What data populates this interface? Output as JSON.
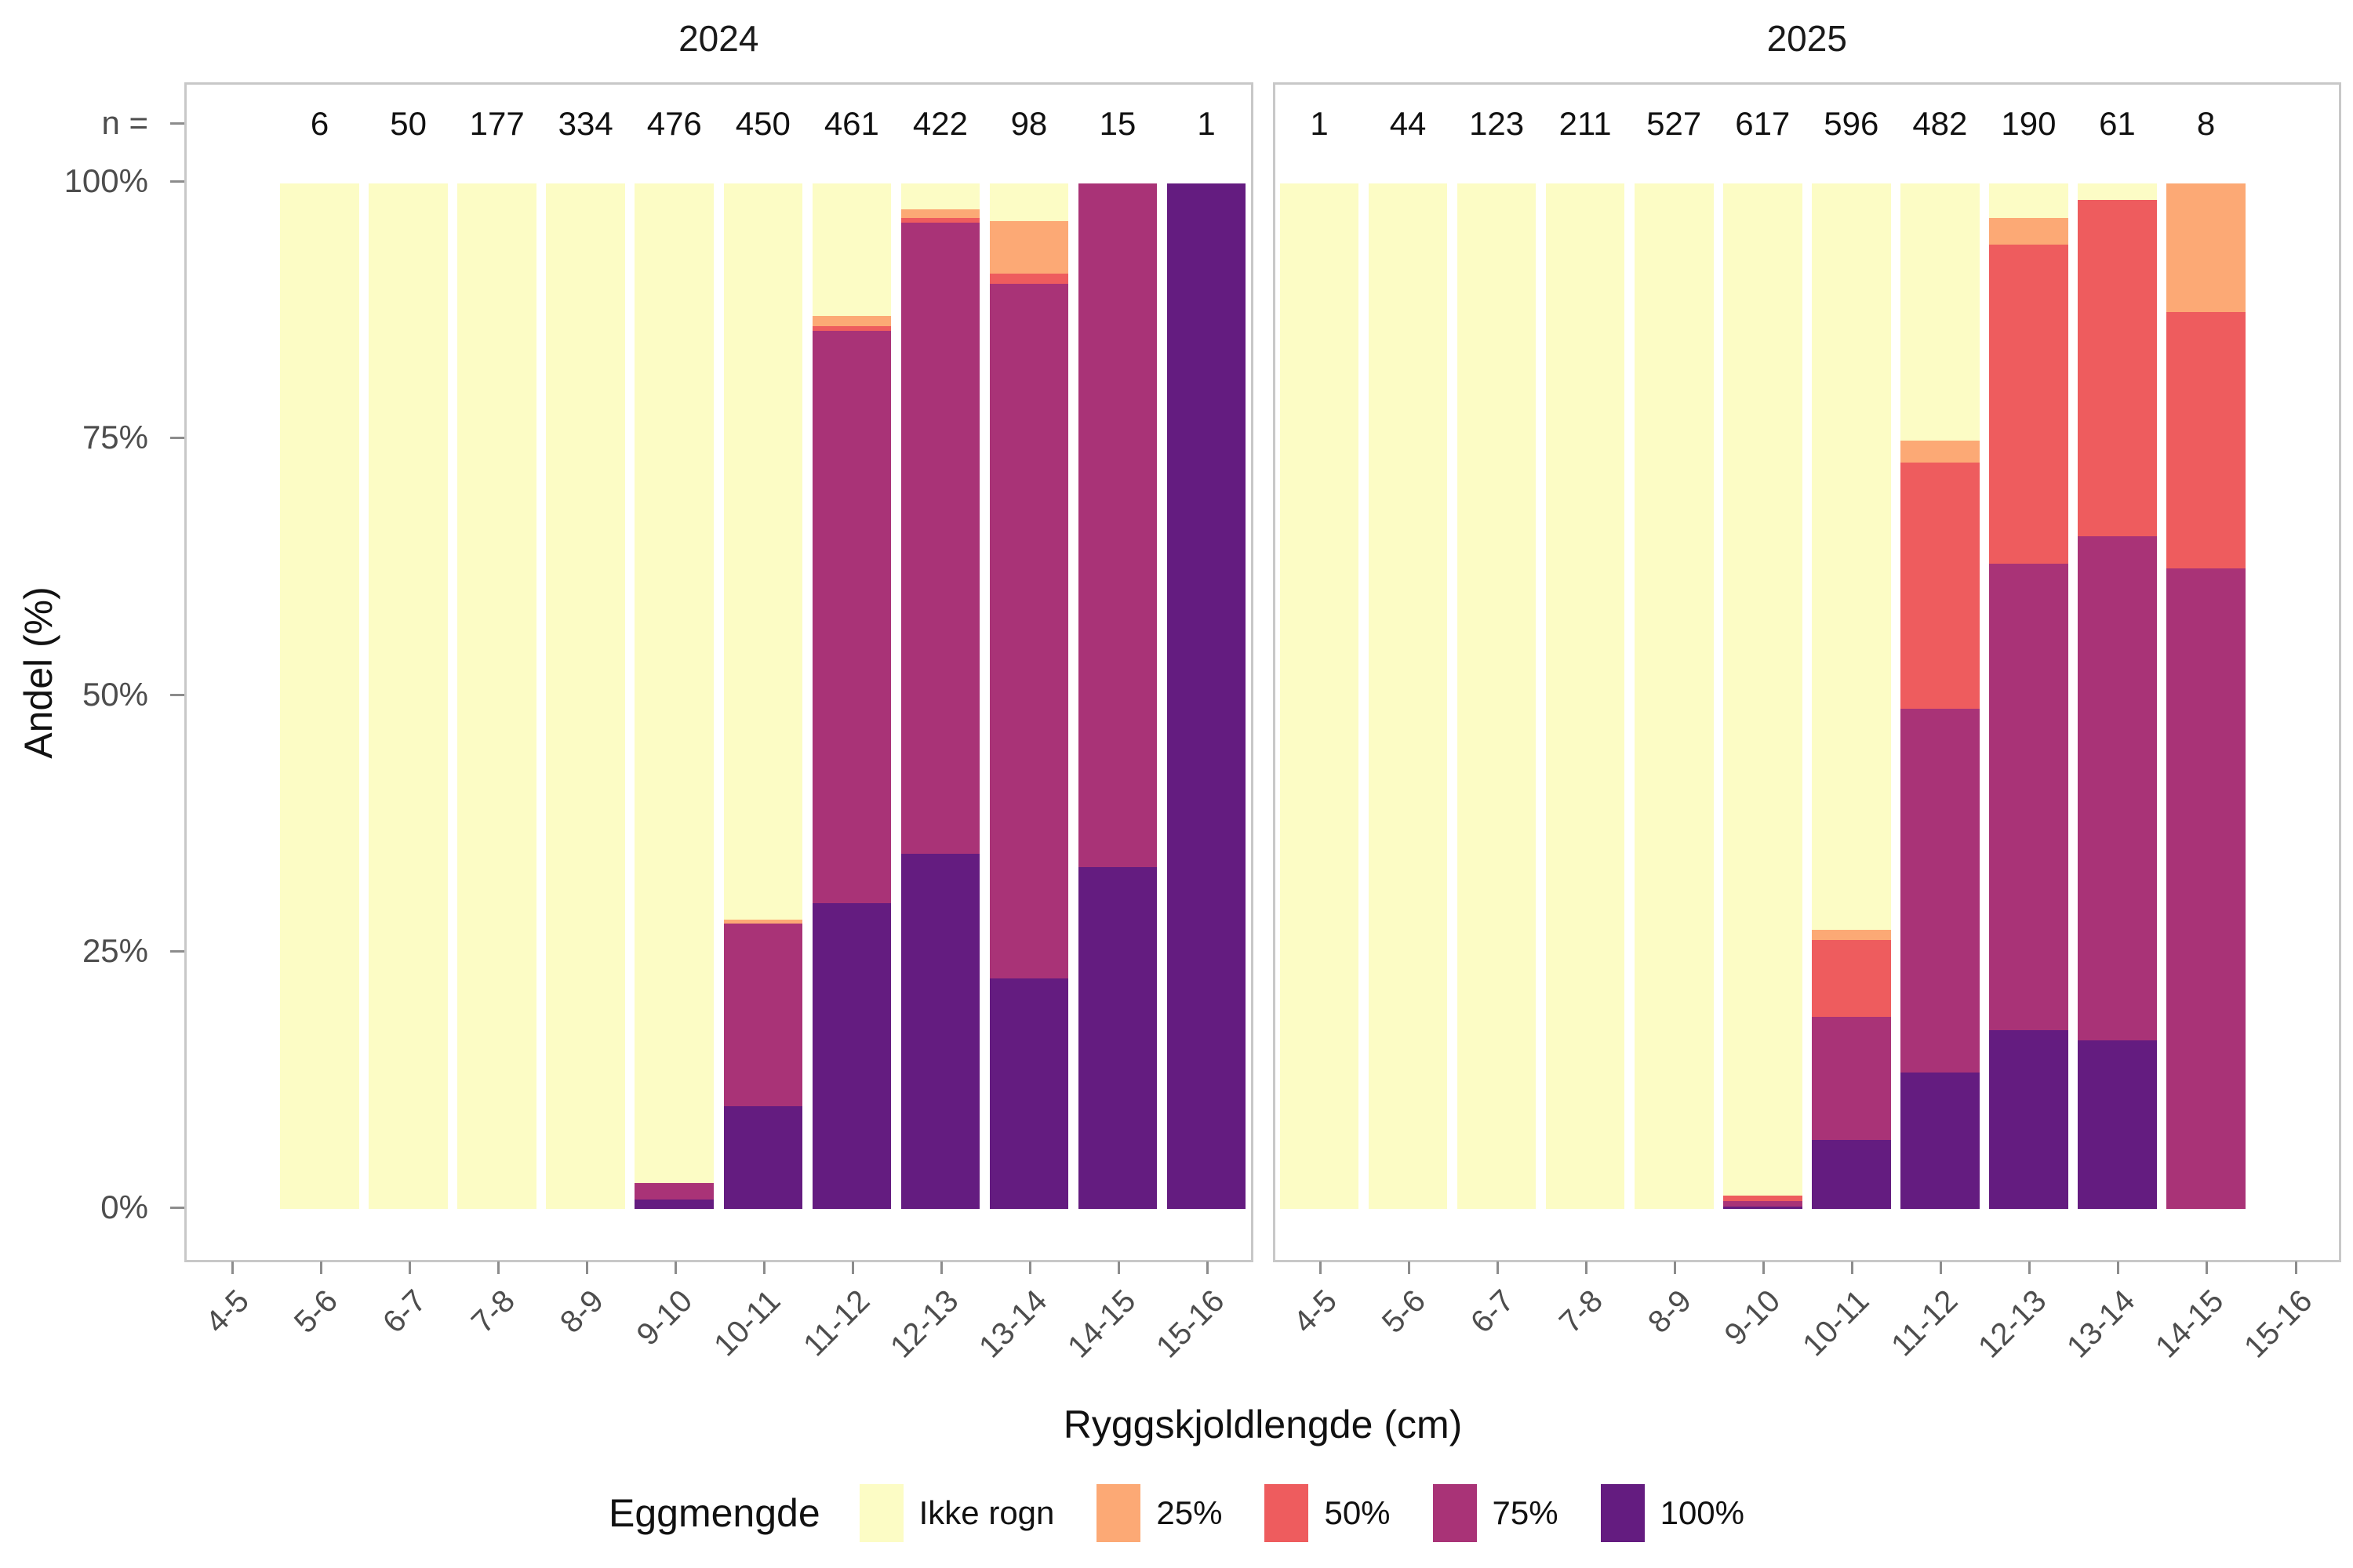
{
  "figure": {
    "y_axis_title": "Andel (%)",
    "x_axis_title": "Ryggskjoldlengde (cm)",
    "n_prefix_label": "n =",
    "legend_title": "Eggmengde"
  },
  "colors": {
    "background": "#FFFFFF",
    "panel_border": "#C8C8C8",
    "axis_text": "#4D4D4D",
    "axis_title": "#111111",
    "tick_mark": "#8C8C8C"
  },
  "chart_data": {
    "type": "bar",
    "stacked": true,
    "normalized": "percent",
    "grid": false,
    "legend_position": "bottom",
    "ylabel": "Andel (%)",
    "xlabel": "Ryggskjoldlengde (cm)",
    "ylim": [
      0,
      100
    ],
    "y_ticks": [
      "0%",
      "25%",
      "50%",
      "75%",
      "100%"
    ],
    "categories": [
      "4-5",
      "5-6",
      "6-7",
      "7-8",
      "8-9",
      "9-10",
      "10-11",
      "11-12",
      "12-13",
      "13-14",
      "14-15",
      "15-16"
    ],
    "series": [
      {
        "name": "Ikke rogn",
        "color": "#FCFCC5"
      },
      {
        "name": "25%",
        "color": "#FCA975"
      },
      {
        "name": "50%",
        "color": "#EE5C5E"
      },
      {
        "name": "75%",
        "color": "#A93377"
      },
      {
        "name": "100%",
        "color": "#641C80"
      }
    ],
    "facets": [
      {
        "title": "2024",
        "bars": [
          {
            "category": "4-5",
            "n": null,
            "values": null
          },
          {
            "category": "5-6",
            "n": 6,
            "values": [
              100,
              0,
              0,
              0,
              0
            ]
          },
          {
            "category": "6-7",
            "n": 50,
            "values": [
              100,
              0,
              0,
              0,
              0
            ]
          },
          {
            "category": "7-8",
            "n": 177,
            "values": [
              100,
              0,
              0,
              0,
              0
            ]
          },
          {
            "category": "8-9",
            "n": 334,
            "values": [
              100,
              0,
              0,
              0,
              0
            ]
          },
          {
            "category": "9-10",
            "n": 476,
            "values": [
              97.5,
              0,
              0,
              1.6,
              0.9
            ]
          },
          {
            "category": "10-11",
            "n": 450,
            "values": [
              71.8,
              0.4,
              0,
              17.8,
              10.0
            ]
          },
          {
            "category": "11-12",
            "n": 461,
            "values": [
              12.9,
              1.0,
              0.5,
              55.8,
              29.8
            ]
          },
          {
            "category": "12-13",
            "n": 422,
            "values": [
              2.5,
              0.9,
              0.4,
              61.6,
              34.6
            ]
          },
          {
            "category": "13-14",
            "n": 98,
            "values": [
              3.7,
              5.1,
              1.0,
              67.7,
              22.5
            ]
          },
          {
            "category": "14-15",
            "n": 15,
            "values": [
              0,
              0,
              0,
              66.7,
              33.3
            ]
          },
          {
            "category": "15-16",
            "n": 1,
            "values": [
              0,
              0,
              0,
              0,
              100
            ]
          }
        ]
      },
      {
        "title": "2025",
        "bars": [
          {
            "category": "4-5",
            "n": 1,
            "values": [
              100,
              0,
              0,
              0,
              0
            ]
          },
          {
            "category": "5-6",
            "n": 44,
            "values": [
              100,
              0,
              0,
              0,
              0
            ]
          },
          {
            "category": "6-7",
            "n": 123,
            "values": [
              100,
              0,
              0,
              0,
              0
            ]
          },
          {
            "category": "7-8",
            "n": 211,
            "values": [
              100,
              0,
              0,
              0,
              0
            ]
          },
          {
            "category": "8-9",
            "n": 527,
            "values": [
              100,
              0,
              0,
              0,
              0
            ]
          },
          {
            "category": "9-10",
            "n": 617,
            "values": [
              98.7,
              0,
              0.5,
              0.6,
              0.2
            ]
          },
          {
            "category": "10-11",
            "n": 596,
            "values": [
              72.8,
              1.0,
              7.5,
              12.0,
              6.7
            ]
          },
          {
            "category": "11-12",
            "n": 482,
            "values": [
              25.1,
              2.1,
              24.0,
              35.5,
              13.3
            ]
          },
          {
            "category": "12-13",
            "n": 190,
            "values": [
              3.4,
              2.6,
              31.1,
              45.5,
              17.4
            ]
          },
          {
            "category": "13-14",
            "n": 61,
            "values": [
              1.6,
              0,
              32.8,
              49.2,
              16.4
            ]
          },
          {
            "category": "14-15",
            "n": 8,
            "values": [
              0,
              12.5,
              25.0,
              62.5,
              0
            ]
          },
          {
            "category": "15-16",
            "n": null,
            "values": null
          }
        ]
      }
    ]
  }
}
